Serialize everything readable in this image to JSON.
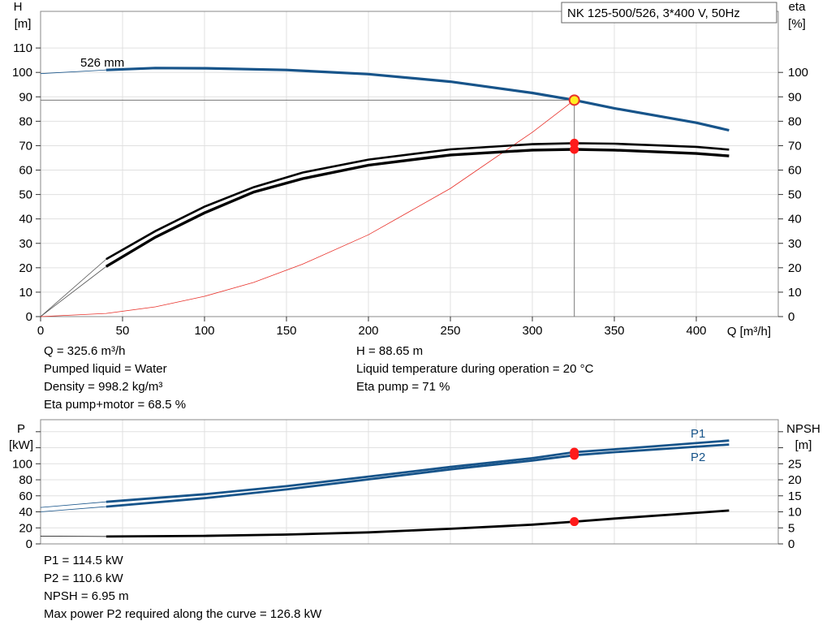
{
  "title_box": "NK 125-500/526, 3*400 V, 50Hz",
  "chart_data": [
    {
      "type": "line",
      "title": "NK 125-500/526, 3*400 V, 50Hz",
      "x_axis": {
        "label": "Q [m³/h]",
        "range": [
          0,
          450
        ],
        "ticks": [
          0,
          50,
          100,
          150,
          200,
          250,
          300,
          350,
          400
        ]
      },
      "y_axis_left": {
        "label_line1": "H",
        "label_line2": "[m]",
        "range": [
          0,
          125
        ],
        "ticks": [
          0,
          10,
          20,
          30,
          40,
          50,
          60,
          70,
          80,
          90,
          100,
          110
        ]
      },
      "y_axis_right": {
        "label_line1": "eta",
        "label_line2": "[%]",
        "range": [
          0,
          125
        ],
        "ticks": [
          0,
          10,
          20,
          30,
          40,
          50,
          60,
          70,
          80,
          90,
          100
        ]
      },
      "grid": true,
      "curve_label": "526 mm",
      "operating_point": {
        "Q": 325.6,
        "H": 88.65,
        "eta_pump": 71,
        "eta_pump_motor": 68.5
      },
      "series": [
        {
          "key": "head",
          "color": "#17548a",
          "points": [
            [
              40,
              101
            ],
            [
              70,
              101.8
            ],
            [
              100,
              101.7
            ],
            [
              150,
              101
            ],
            [
              200,
              99.3
            ],
            [
              250,
              96.2
            ],
            [
              300,
              91.6
            ],
            [
              325.6,
              88.65
            ],
            [
              350,
              85.3
            ],
            [
              400,
              79.4
            ],
            [
              420,
              76.3
            ]
          ],
          "extension": [
            [
              0,
              99.5
            ],
            [
              40,
              101
            ]
          ]
        },
        {
          "key": "eta_pump",
          "color": "#000000",
          "points": [
            [
              40,
              23.5
            ],
            [
              70,
              35
            ],
            [
              100,
              45
            ],
            [
              130,
              53
            ],
            [
              160,
              59
            ],
            [
              200,
              64.3
            ],
            [
              250,
              68.5
            ],
            [
              300,
              70.6
            ],
            [
              325.6,
              71
            ],
            [
              350,
              70.8
            ],
            [
              400,
              69.5
            ],
            [
              420,
              68.4
            ]
          ],
          "extension": [
            [
              0,
              0
            ],
            [
              40,
              23.5
            ]
          ]
        },
        {
          "key": "eta_total",
          "color": "#000000",
          "points": [
            [
              40,
              20.5
            ],
            [
              70,
              32.5
            ],
            [
              100,
              42.5
            ],
            [
              130,
              51
            ],
            [
              160,
              56.5
            ],
            [
              200,
              62
            ],
            [
              250,
              66.2
            ],
            [
              300,
              68.2
            ],
            [
              325.6,
              68.5
            ],
            [
              350,
              68.2
            ],
            [
              400,
              66.8
            ],
            [
              420,
              65.8
            ]
          ],
          "extension": [
            [
              0,
              0
            ],
            [
              40,
              20.5
            ]
          ]
        },
        {
          "key": "system",
          "color": "#e8312a",
          "points": [
            [
              0,
              0
            ],
            [
              40,
              1.3
            ],
            [
              70,
              4
            ],
            [
              100,
              8.3
            ],
            [
              130,
              14
            ],
            [
              160,
              21.5
            ],
            [
              200,
              33.5
            ],
            [
              250,
              52.5
            ],
            [
              300,
              75.5
            ],
            [
              325.6,
              88.65
            ]
          ]
        }
      ]
    },
    {
      "type": "line",
      "x_axis": {
        "range": [
          0,
          450
        ]
      },
      "y_axis_left": {
        "label_line1": "P",
        "label_line2": "[kW]",
        "range": [
          0,
          155
        ],
        "ticks": [
          0,
          20,
          40,
          60,
          80,
          100
        ]
      },
      "y_axis_right": {
        "label_line1": "NPSH",
        "label_line2": "[m]",
        "range": [
          0,
          38.75
        ],
        "ticks": [
          0,
          5,
          10,
          15,
          20,
          25
        ]
      },
      "grid": true,
      "series": [
        {
          "key": "p1",
          "name": "P1",
          "color": "#17548a",
          "points": [
            [
              40,
              52.5
            ],
            [
              100,
              62
            ],
            [
              150,
              72
            ],
            [
              200,
              84
            ],
            [
              250,
              96
            ],
            [
              300,
              107
            ],
            [
              325.6,
              114.5
            ],
            [
              350,
              118
            ],
            [
              420,
              129
            ]
          ],
          "extension": [
            [
              0,
              45.5
            ],
            [
              40,
              52.5
            ]
          ]
        },
        {
          "key": "p2",
          "name": "P2",
          "color": "#17548a",
          "points": [
            [
              40,
              46.5
            ],
            [
              100,
              57
            ],
            [
              150,
              68
            ],
            [
              200,
              80.5
            ],
            [
              250,
              93
            ],
            [
              300,
              104
            ],
            [
              325.6,
              110.6
            ],
            [
              350,
              114.5
            ],
            [
              420,
              124
            ]
          ],
          "extension": [
            [
              0,
              40
            ],
            [
              40,
              46.5
            ]
          ]
        },
        {
          "key": "npsh",
          "name": "NPSH",
          "axis": "right",
          "color": "#000000",
          "points": [
            [
              40,
              2.3
            ],
            [
              100,
              2.5
            ],
            [
              150,
              2.9
            ],
            [
              200,
              3.6
            ],
            [
              250,
              4.7
            ],
            [
              300,
              6
            ],
            [
              325.6,
              6.95
            ],
            [
              350,
              7.9
            ],
            [
              420,
              10.4
            ]
          ],
          "extension": [
            [
              0,
              2.4
            ],
            [
              40,
              2.3
            ]
          ]
        }
      ],
      "operating_point": {
        "Q": 325.6,
        "P1": 114.5,
        "P2": 110.6,
        "NPSH": 6.95
      }
    }
  ],
  "info_top": {
    "q": "Q = 325.6 m³/h",
    "liquid": "Pumped liquid = Water",
    "density": "Density = 998.2 kg/m³",
    "eta_total": "Eta pump+motor = 68.5 %",
    "h": "H = 88.65 m",
    "temp": "Liquid temperature during operation = 20 °C",
    "eta_pump": "Eta pump = 71 %"
  },
  "info_bottom": {
    "p1": "P1 = 114.5 kW",
    "p2": "P2 = 110.6 kW",
    "npsh": "NPSH = 6.95 m",
    "max_p2": "Max power P2 required along the curve = 126.8 kW"
  }
}
